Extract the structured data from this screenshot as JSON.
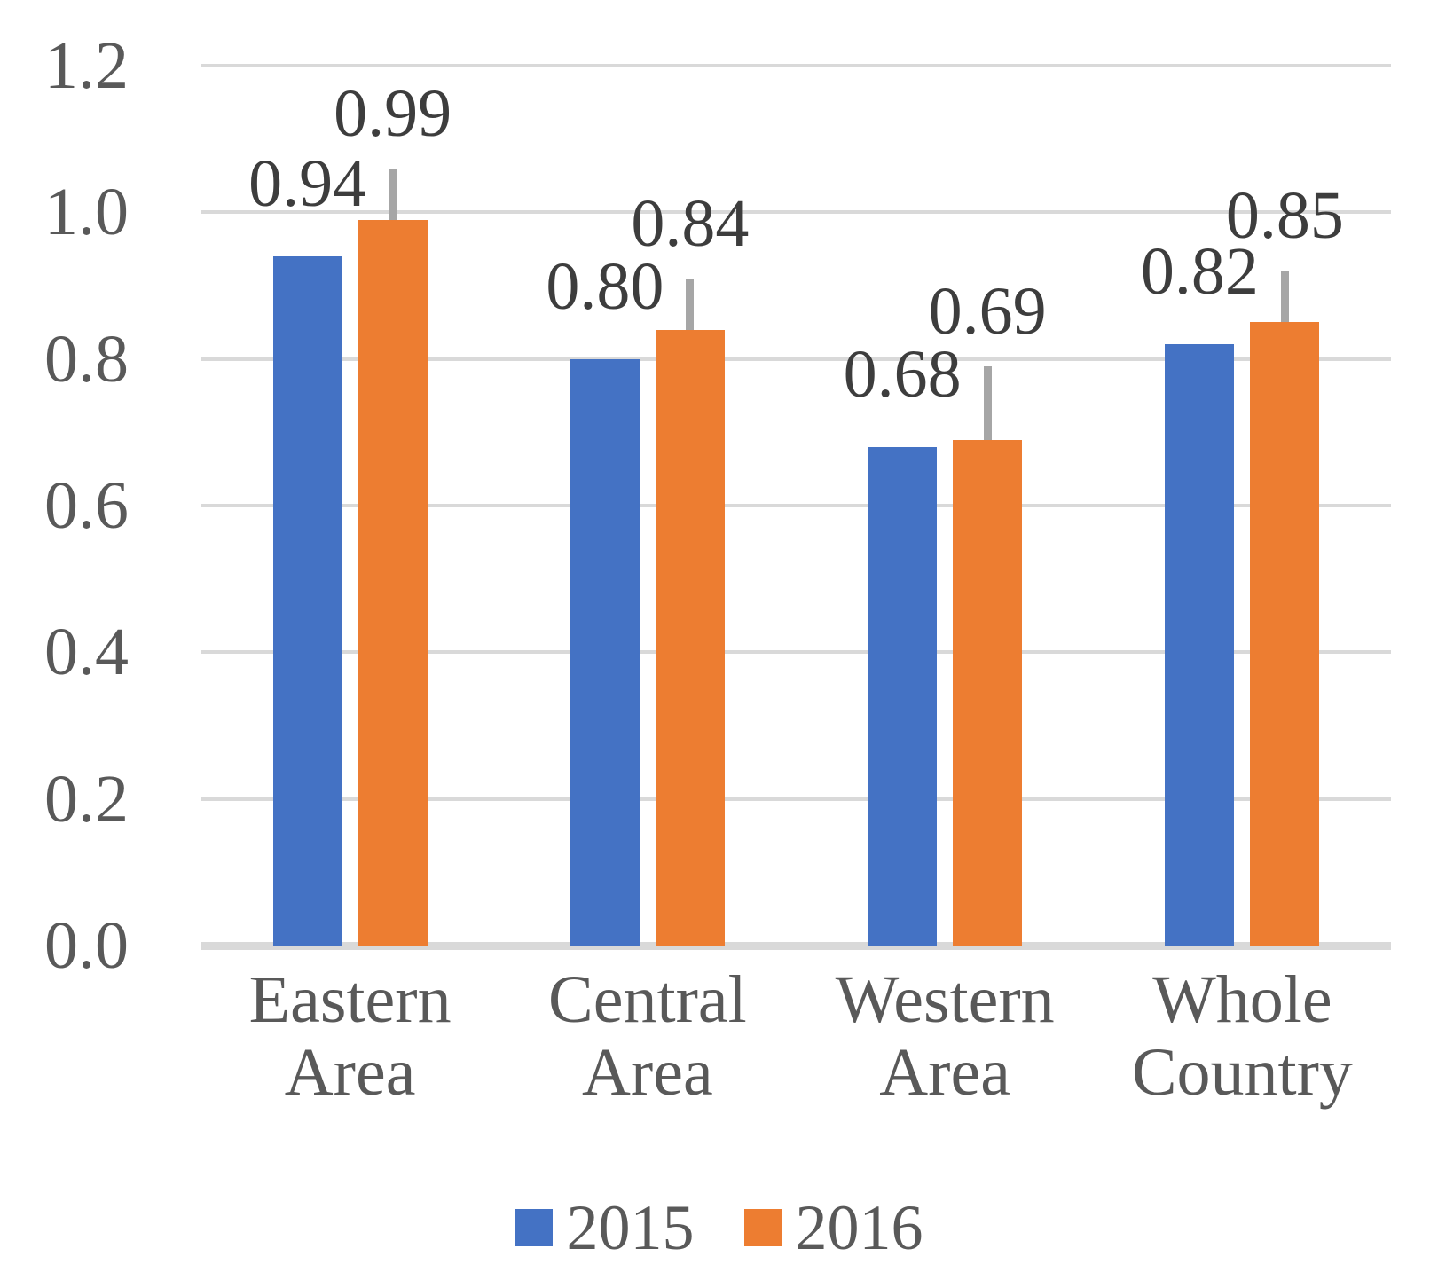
{
  "chart_data": {
    "type": "bar",
    "title": "",
    "xlabel": "",
    "ylabel": "",
    "categories": [
      [
        "Eastern",
        "Area"
      ],
      [
        "Central",
        "Area"
      ],
      [
        "Western",
        "Area"
      ],
      [
        "Whole",
        "Country"
      ]
    ],
    "series": [
      {
        "name": "2015",
        "color": "#4472C4",
        "values": [
          0.94,
          0.8,
          0.68,
          0.82
        ],
        "labels": [
          "0.94",
          "0.80",
          "0.68",
          "0.82"
        ]
      },
      {
        "name": "2016",
        "color": "#ED7D31",
        "values": [
          0.99,
          0.84,
          0.69,
          0.85
        ],
        "labels": [
          "0.99",
          "0.84",
          "0.69",
          "0.85"
        ],
        "error_up": [
          0.07,
          0.07,
          0.1,
          0.07
        ]
      }
    ],
    "ylim": [
      0,
      1.2
    ],
    "yticks": [
      0,
      0.2,
      0.4,
      0.6,
      0.8,
      1.0,
      1.2
    ],
    "ytick_labels": [
      "0.0",
      "0.2",
      "0.4",
      "0.6",
      "0.8",
      "1.0",
      "1.2"
    ],
    "grid": true,
    "legend_position": "bottom",
    "colors": {
      "grid": "#d9d9d9",
      "axis_line": "#d9d9d9",
      "error_bar": "#a6a6a6",
      "tick_text": "#595959",
      "category_text": "#595959",
      "legend_text": "#595959",
      "data_label_text": "#3d3d3d"
    }
  }
}
